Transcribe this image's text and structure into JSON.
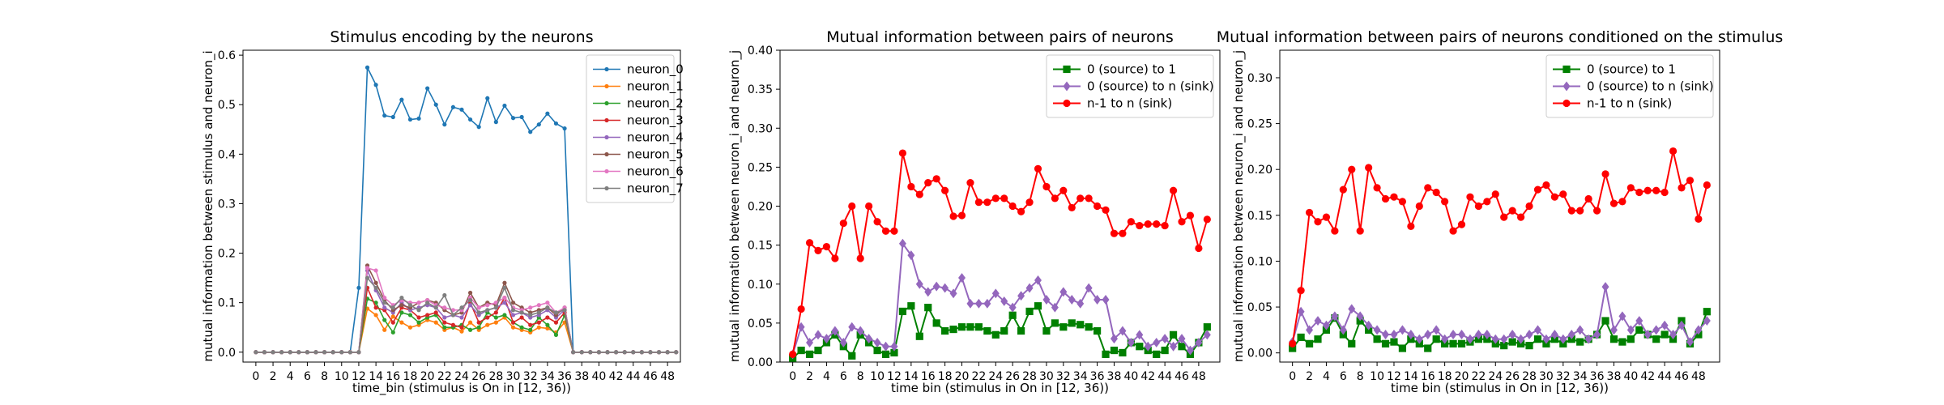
{
  "chart_data": [
    {
      "type": "line",
      "title": "Stimulus encoding by the neurons",
      "xlabel": "time_bin (stimulus is On in [12, 36))",
      "ylabel": "mutual information between stimulus and neuron_i",
      "xlim": [
        -1.5,
        49.5
      ],
      "ylim": [
        -0.02,
        0.61
      ],
      "xticks": [
        0,
        2,
        4,
        6,
        8,
        10,
        12,
        14,
        16,
        18,
        20,
        22,
        24,
        26,
        28,
        30,
        32,
        34,
        36,
        38,
        40,
        42,
        44,
        46,
        48
      ],
      "yticks": [
        0.0,
        0.1,
        0.2,
        0.3,
        0.4,
        0.5,
        0.6
      ],
      "y_decimals": 1,
      "legend_position": "upper right",
      "series": [
        {
          "name": "neuron_0",
          "color": "#1f77b4",
          "marker": "dot",
          "values": [
            0,
            0,
            0,
            0,
            0,
            0,
            0,
            0,
            0,
            0,
            0,
            0,
            0.13,
            0.575,
            0.54,
            0.478,
            0.475,
            0.51,
            0.47,
            0.472,
            0.533,
            0.5,
            0.46,
            0.495,
            0.49,
            0.47,
            0.455,
            0.513,
            0.465,
            0.498,
            0.473,
            0.475,
            0.445,
            0.46,
            0.482,
            0.462,
            0.452,
            0,
            0,
            0,
            0,
            0,
            0,
            0,
            0,
            0,
            0,
            0,
            0,
            0
          ]
        },
        {
          "name": "neuron_1",
          "color": "#ff7f0e",
          "marker": "dot",
          "values": [
            0,
            0,
            0,
            0,
            0,
            0,
            0,
            0,
            0,
            0,
            0,
            0,
            0,
            0.088,
            0.075,
            0.045,
            0.072,
            0.06,
            0.05,
            0.055,
            0.065,
            0.06,
            0.045,
            0.05,
            0.042,
            0.06,
            0.045,
            0.055,
            0.06,
            0.07,
            0.05,
            0.045,
            0.04,
            0.05,
            0.048,
            0.04,
            0.06,
            0,
            0,
            0,
            0,
            0,
            0,
            0,
            0,
            0,
            0,
            0,
            0,
            0
          ]
        },
        {
          "name": "neuron_2",
          "color": "#2ca02c",
          "marker": "dot",
          "values": [
            0,
            0,
            0,
            0,
            0,
            0,
            0,
            0,
            0,
            0,
            0,
            0,
            0,
            0.108,
            0.1,
            0.065,
            0.04,
            0.08,
            0.075,
            0.06,
            0.07,
            0.075,
            0.05,
            0.05,
            0.055,
            0.045,
            0.05,
            0.08,
            0.07,
            0.075,
            0.06,
            0.05,
            0.045,
            0.07,
            0.055,
            0.035,
            0.075,
            0,
            0,
            0,
            0,
            0,
            0,
            0,
            0,
            0,
            0,
            0,
            0,
            0
          ]
        },
        {
          "name": "neuron_3",
          "color": "#d62728",
          "marker": "dot",
          "values": [
            0,
            0,
            0,
            0,
            0,
            0,
            0,
            0,
            0,
            0,
            0,
            0,
            0,
            0.13,
            0.09,
            0.085,
            0.06,
            0.09,
            0.085,
            0.07,
            0.075,
            0.08,
            0.06,
            0.055,
            0.05,
            0.1,
            0.06,
            0.07,
            0.08,
            0.11,
            0.06,
            0.07,
            0.055,
            0.06,
            0.07,
            0.06,
            0.08,
            0,
            0,
            0,
            0,
            0,
            0,
            0,
            0,
            0,
            0,
            0,
            0,
            0
          ]
        },
        {
          "name": "neuron_4",
          "color": "#9467bd",
          "marker": "dot",
          "values": [
            0,
            0,
            0,
            0,
            0,
            0,
            0,
            0,
            0,
            0,
            0,
            0,
            0,
            0.165,
            0.125,
            0.09,
            0.08,
            0.1,
            0.085,
            0.09,
            0.095,
            0.09,
            0.07,
            0.075,
            0.07,
            0.095,
            0.075,
            0.085,
            0.09,
            0.1,
            0.075,
            0.08,
            0.07,
            0.075,
            0.085,
            0.07,
            0.085,
            0,
            0,
            0,
            0,
            0,
            0,
            0,
            0,
            0,
            0,
            0,
            0,
            0
          ]
        },
        {
          "name": "neuron_5",
          "color": "#8c564b",
          "marker": "dot",
          "values": [
            0,
            0,
            0,
            0,
            0,
            0,
            0,
            0,
            0,
            0,
            0,
            0,
            0,
            0.175,
            0.14,
            0.105,
            0.085,
            0.095,
            0.09,
            0.1,
            0.105,
            0.1,
            0.085,
            0.075,
            0.08,
            0.12,
            0.09,
            0.1,
            0.095,
            0.14,
            0.1,
            0.09,
            0.08,
            0.085,
            0.09,
            0.075,
            0.09,
            0,
            0,
            0,
            0,
            0,
            0,
            0,
            0,
            0,
            0,
            0,
            0,
            0
          ]
        },
        {
          "name": "neuron_6",
          "color": "#e377c2",
          "marker": "dot",
          "values": [
            0,
            0,
            0,
            0,
            0,
            0,
            0,
            0,
            0,
            0,
            0,
            0,
            0,
            0.17,
            0.165,
            0.11,
            0.095,
            0.105,
            0.1,
            0.1,
            0.105,
            0.095,
            0.09,
            0.085,
            0.085,
            0.11,
            0.09,
            0.095,
            0.1,
            0.11,
            0.09,
            0.085,
            0.09,
            0.095,
            0.1,
            0.08,
            0.09,
            0,
            0,
            0,
            0,
            0,
            0,
            0,
            0,
            0,
            0,
            0,
            0,
            0
          ]
        },
        {
          "name": "neuron_7",
          "color": "#7f7f7f",
          "marker": "dot",
          "values": [
            0,
            0,
            0,
            0,
            0,
            0,
            0,
            0,
            0,
            0,
            0,
            0,
            0,
            0.15,
            0.13,
            0.1,
            0.09,
            0.11,
            0.095,
            0.085,
            0.1,
            0.09,
            0.115,
            0.075,
            0.09,
            0.105,
            0.08,
            0.085,
            0.09,
            0.13,
            0.085,
            0.08,
            0.075,
            0.08,
            0.09,
            0.08,
            0.085,
            0,
            0,
            0,
            0,
            0,
            0,
            0,
            0,
            0,
            0,
            0,
            0,
            0
          ]
        }
      ]
    },
    {
      "type": "line",
      "title": "Mutual information between pairs of neurons",
      "xlabel": "time bin (stimulus in On in [12, 36))",
      "ylabel": "mutual information between neuron_i and neuron_j",
      "xlim": [
        -1.5,
        50.5
      ],
      "ylim": [
        0.0,
        0.4
      ],
      "xticks": [
        0,
        2,
        4,
        6,
        8,
        10,
        12,
        14,
        16,
        18,
        20,
        22,
        24,
        26,
        28,
        30,
        32,
        34,
        36,
        38,
        40,
        42,
        44,
        46,
        48
      ],
      "yticks": [
        0.0,
        0.05,
        0.1,
        0.15,
        0.2,
        0.25,
        0.3,
        0.35,
        0.4
      ],
      "y_decimals": 2,
      "legend_position": "upper right",
      "series": [
        {
          "name": "0 (source) to 1",
          "color": "#008000",
          "marker": "square",
          "values": [
            0.005,
            0.015,
            0.01,
            0.015,
            0.025,
            0.035,
            0.02,
            0.008,
            0.035,
            0.025,
            0.015,
            0.01,
            0.012,
            0.065,
            0.072,
            0.033,
            0.07,
            0.05,
            0.04,
            0.042,
            0.045,
            0.045,
            0.045,
            0.04,
            0.035,
            0.04,
            0.06,
            0.04,
            0.065,
            0.072,
            0.04,
            0.05,
            0.045,
            0.05,
            0.048,
            0.045,
            0.04,
            0.01,
            0.015,
            0.012,
            0.025,
            0.02,
            0.015,
            0.01,
            0.015,
            0.035,
            0.02,
            0.01,
            0.025,
            0.045
          ]
        },
        {
          "name": "0 (source) to n (sink)",
          "color": "#9467bd",
          "marker": "diamond",
          "values": [
            0.01,
            0.045,
            0.025,
            0.035,
            0.03,
            0.04,
            0.025,
            0.045,
            0.04,
            0.03,
            0.025,
            0.02,
            0.02,
            0.152,
            0.137,
            0.1,
            0.09,
            0.097,
            0.095,
            0.088,
            0.108,
            0.075,
            0.075,
            0.075,
            0.088,
            0.078,
            0.07,
            0.085,
            0.095,
            0.105,
            0.08,
            0.07,
            0.09,
            0.08,
            0.075,
            0.095,
            0.08,
            0.08,
            0.03,
            0.04,
            0.025,
            0.035,
            0.02,
            0.025,
            0.03,
            0.02,
            0.03,
            0.015,
            0.025,
            0.035
          ]
        },
        {
          "name": "n-1 to n (sink)",
          "color": "#ff0000",
          "marker": "circle",
          "values": [
            0.01,
            0.068,
            0.153,
            0.143,
            0.148,
            0.133,
            0.178,
            0.2,
            0.133,
            0.2,
            0.18,
            0.168,
            0.168,
            0.268,
            0.225,
            0.215,
            0.23,
            0.235,
            0.22,
            0.187,
            0.188,
            0.23,
            0.205,
            0.205,
            0.21,
            0.21,
            0.2,
            0.193,
            0.205,
            0.248,
            0.225,
            0.21,
            0.22,
            0.198,
            0.21,
            0.21,
            0.2,
            0.195,
            0.165,
            0.165,
            0.18,
            0.175,
            0.177,
            0.177,
            0.175,
            0.22,
            0.18,
            0.188,
            0.146,
            0.183
          ]
        }
      ]
    },
    {
      "type": "line",
      "title": "Mutual information between pairs of neurons conditioned on the stimulus",
      "xlabel": "time bin (stimulus in On in [12, 36))",
      "ylabel": "mutual information between neuron_i and neuron_j",
      "xlim": [
        -1.5,
        50.5
      ],
      "ylim": [
        -0.01,
        0.33
      ],
      "xticks": [
        0,
        2,
        4,
        6,
        8,
        10,
        12,
        14,
        16,
        18,
        20,
        22,
        24,
        26,
        28,
        30,
        32,
        34,
        36,
        38,
        40,
        42,
        44,
        46,
        48
      ],
      "yticks": [
        0.0,
        0.05,
        0.1,
        0.15,
        0.2,
        0.25,
        0.3
      ],
      "y_decimals": 2,
      "legend_position": "upper right",
      "series": [
        {
          "name": "0 (source) to 1",
          "color": "#008000",
          "marker": "square",
          "values": [
            0.005,
            0.017,
            0.01,
            0.015,
            0.025,
            0.038,
            0.02,
            0.01,
            0.035,
            0.025,
            0.015,
            0.01,
            0.012,
            0.005,
            0.015,
            0.01,
            0.005,
            0.015,
            0.01,
            0.01,
            0.01,
            0.012,
            0.015,
            0.015,
            0.01,
            0.008,
            0.012,
            0.01,
            0.008,
            0.015,
            0.01,
            0.015,
            0.01,
            0.015,
            0.012,
            0.015,
            0.02,
            0.035,
            0.015,
            0.012,
            0.015,
            0.025,
            0.02,
            0.015,
            0.02,
            0.015,
            0.035,
            0.01,
            0.02,
            0.045
          ]
        },
        {
          "name": "0 (source) to n (sink)",
          "color": "#9467bd",
          "marker": "diamond",
          "values": [
            0.012,
            0.045,
            0.025,
            0.035,
            0.03,
            0.04,
            0.025,
            0.048,
            0.04,
            0.03,
            0.025,
            0.02,
            0.02,
            0.025,
            0.02,
            0.015,
            0.02,
            0.025,
            0.015,
            0.02,
            0.02,
            0.015,
            0.02,
            0.02,
            0.015,
            0.015,
            0.02,
            0.015,
            0.02,
            0.025,
            0.015,
            0.02,
            0.015,
            0.02,
            0.025,
            0.015,
            0.02,
            0.072,
            0.025,
            0.04,
            0.025,
            0.035,
            0.02,
            0.025,
            0.03,
            0.02,
            0.03,
            0.012,
            0.025,
            0.035
          ]
        },
        {
          "name": "n-1 to n (sink)",
          "color": "#ff0000",
          "marker": "circle",
          "values": [
            0.01,
            0.068,
            0.153,
            0.143,
            0.148,
            0.133,
            0.178,
            0.2,
            0.133,
            0.202,
            0.18,
            0.168,
            0.17,
            0.165,
            0.138,
            0.16,
            0.18,
            0.175,
            0.165,
            0.133,
            0.14,
            0.17,
            0.16,
            0.165,
            0.173,
            0.148,
            0.155,
            0.148,
            0.16,
            0.178,
            0.183,
            0.17,
            0.173,
            0.155,
            0.155,
            0.168,
            0.155,
            0.195,
            0.163,
            0.165,
            0.18,
            0.175,
            0.177,
            0.177,
            0.175,
            0.22,
            0.18,
            0.188,
            0.146,
            0.183
          ]
        }
      ]
    }
  ]
}
